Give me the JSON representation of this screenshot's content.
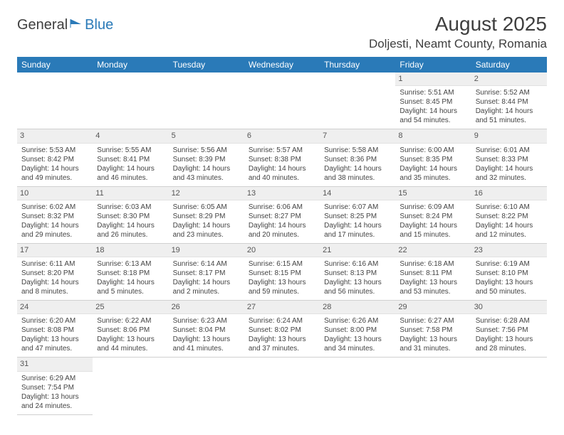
{
  "logo": {
    "general": "General",
    "blue": "Blue"
  },
  "title": {
    "month": "August 2025",
    "location": "Doljesti, Neamt County, Romania"
  },
  "colors": {
    "header_bg": "#2a7ab8",
    "header_text": "#ffffff",
    "daynum_bg": "#efefef",
    "border": "#d0d0d0",
    "text": "#444444"
  },
  "weekdays": [
    "Sunday",
    "Monday",
    "Tuesday",
    "Wednesday",
    "Thursday",
    "Friday",
    "Saturday"
  ],
  "weeks": [
    [
      null,
      null,
      null,
      null,
      null,
      {
        "n": "1",
        "sr": "Sunrise: 5:51 AM",
        "ss": "Sunset: 8:45 PM",
        "d1": "Daylight: 14 hours",
        "d2": "and 54 minutes."
      },
      {
        "n": "2",
        "sr": "Sunrise: 5:52 AM",
        "ss": "Sunset: 8:44 PM",
        "d1": "Daylight: 14 hours",
        "d2": "and 51 minutes."
      }
    ],
    [
      {
        "n": "3",
        "sr": "Sunrise: 5:53 AM",
        "ss": "Sunset: 8:42 PM",
        "d1": "Daylight: 14 hours",
        "d2": "and 49 minutes."
      },
      {
        "n": "4",
        "sr": "Sunrise: 5:55 AM",
        "ss": "Sunset: 8:41 PM",
        "d1": "Daylight: 14 hours",
        "d2": "and 46 minutes."
      },
      {
        "n": "5",
        "sr": "Sunrise: 5:56 AM",
        "ss": "Sunset: 8:39 PM",
        "d1": "Daylight: 14 hours",
        "d2": "and 43 minutes."
      },
      {
        "n": "6",
        "sr": "Sunrise: 5:57 AM",
        "ss": "Sunset: 8:38 PM",
        "d1": "Daylight: 14 hours",
        "d2": "and 40 minutes."
      },
      {
        "n": "7",
        "sr": "Sunrise: 5:58 AM",
        "ss": "Sunset: 8:36 PM",
        "d1": "Daylight: 14 hours",
        "d2": "and 38 minutes."
      },
      {
        "n": "8",
        "sr": "Sunrise: 6:00 AM",
        "ss": "Sunset: 8:35 PM",
        "d1": "Daylight: 14 hours",
        "d2": "and 35 minutes."
      },
      {
        "n": "9",
        "sr": "Sunrise: 6:01 AM",
        "ss": "Sunset: 8:33 PM",
        "d1": "Daylight: 14 hours",
        "d2": "and 32 minutes."
      }
    ],
    [
      {
        "n": "10",
        "sr": "Sunrise: 6:02 AM",
        "ss": "Sunset: 8:32 PM",
        "d1": "Daylight: 14 hours",
        "d2": "and 29 minutes."
      },
      {
        "n": "11",
        "sr": "Sunrise: 6:03 AM",
        "ss": "Sunset: 8:30 PM",
        "d1": "Daylight: 14 hours",
        "d2": "and 26 minutes."
      },
      {
        "n": "12",
        "sr": "Sunrise: 6:05 AM",
        "ss": "Sunset: 8:29 PM",
        "d1": "Daylight: 14 hours",
        "d2": "and 23 minutes."
      },
      {
        "n": "13",
        "sr": "Sunrise: 6:06 AM",
        "ss": "Sunset: 8:27 PM",
        "d1": "Daylight: 14 hours",
        "d2": "and 20 minutes."
      },
      {
        "n": "14",
        "sr": "Sunrise: 6:07 AM",
        "ss": "Sunset: 8:25 PM",
        "d1": "Daylight: 14 hours",
        "d2": "and 17 minutes."
      },
      {
        "n": "15",
        "sr": "Sunrise: 6:09 AM",
        "ss": "Sunset: 8:24 PM",
        "d1": "Daylight: 14 hours",
        "d2": "and 15 minutes."
      },
      {
        "n": "16",
        "sr": "Sunrise: 6:10 AM",
        "ss": "Sunset: 8:22 PM",
        "d1": "Daylight: 14 hours",
        "d2": "and 12 minutes."
      }
    ],
    [
      {
        "n": "17",
        "sr": "Sunrise: 6:11 AM",
        "ss": "Sunset: 8:20 PM",
        "d1": "Daylight: 14 hours",
        "d2": "and 8 minutes."
      },
      {
        "n": "18",
        "sr": "Sunrise: 6:13 AM",
        "ss": "Sunset: 8:18 PM",
        "d1": "Daylight: 14 hours",
        "d2": "and 5 minutes."
      },
      {
        "n": "19",
        "sr": "Sunrise: 6:14 AM",
        "ss": "Sunset: 8:17 PM",
        "d1": "Daylight: 14 hours",
        "d2": "and 2 minutes."
      },
      {
        "n": "20",
        "sr": "Sunrise: 6:15 AM",
        "ss": "Sunset: 8:15 PM",
        "d1": "Daylight: 13 hours",
        "d2": "and 59 minutes."
      },
      {
        "n": "21",
        "sr": "Sunrise: 6:16 AM",
        "ss": "Sunset: 8:13 PM",
        "d1": "Daylight: 13 hours",
        "d2": "and 56 minutes."
      },
      {
        "n": "22",
        "sr": "Sunrise: 6:18 AM",
        "ss": "Sunset: 8:11 PM",
        "d1": "Daylight: 13 hours",
        "d2": "and 53 minutes."
      },
      {
        "n": "23",
        "sr": "Sunrise: 6:19 AM",
        "ss": "Sunset: 8:10 PM",
        "d1": "Daylight: 13 hours",
        "d2": "and 50 minutes."
      }
    ],
    [
      {
        "n": "24",
        "sr": "Sunrise: 6:20 AM",
        "ss": "Sunset: 8:08 PM",
        "d1": "Daylight: 13 hours",
        "d2": "and 47 minutes."
      },
      {
        "n": "25",
        "sr": "Sunrise: 6:22 AM",
        "ss": "Sunset: 8:06 PM",
        "d1": "Daylight: 13 hours",
        "d2": "and 44 minutes."
      },
      {
        "n": "26",
        "sr": "Sunrise: 6:23 AM",
        "ss": "Sunset: 8:04 PM",
        "d1": "Daylight: 13 hours",
        "d2": "and 41 minutes."
      },
      {
        "n": "27",
        "sr": "Sunrise: 6:24 AM",
        "ss": "Sunset: 8:02 PM",
        "d1": "Daylight: 13 hours",
        "d2": "and 37 minutes."
      },
      {
        "n": "28",
        "sr": "Sunrise: 6:26 AM",
        "ss": "Sunset: 8:00 PM",
        "d1": "Daylight: 13 hours",
        "d2": "and 34 minutes."
      },
      {
        "n": "29",
        "sr": "Sunrise: 6:27 AM",
        "ss": "Sunset: 7:58 PM",
        "d1": "Daylight: 13 hours",
        "d2": "and 31 minutes."
      },
      {
        "n": "30",
        "sr": "Sunrise: 6:28 AM",
        "ss": "Sunset: 7:56 PM",
        "d1": "Daylight: 13 hours",
        "d2": "and 28 minutes."
      }
    ],
    [
      {
        "n": "31",
        "sr": "Sunrise: 6:29 AM",
        "ss": "Sunset: 7:54 PM",
        "d1": "Daylight: 13 hours",
        "d2": "and 24 minutes."
      },
      null,
      null,
      null,
      null,
      null,
      null
    ]
  ]
}
